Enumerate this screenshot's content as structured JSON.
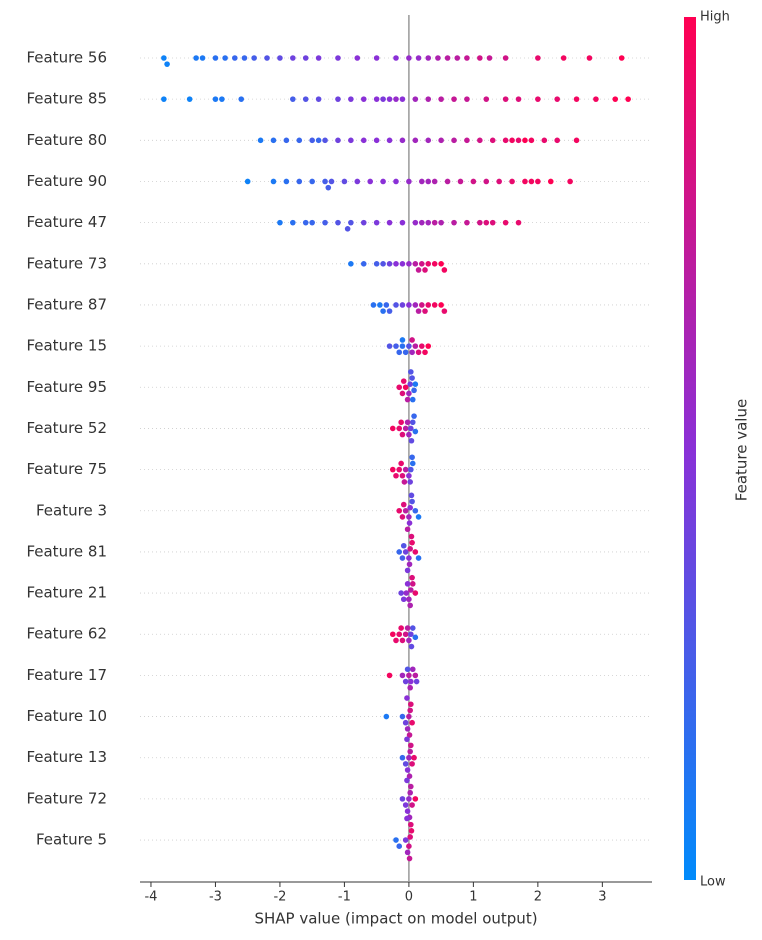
{
  "chart_data": {
    "type": "beeswarm",
    "xlabel": "SHAP value (impact on model output)",
    "xlim": [
      -4.17,
      3.77
    ],
    "xticks": [
      -4,
      -3,
      -2,
      -1,
      0,
      1,
      2,
      3
    ],
    "colorbar": {
      "label": "Feature value",
      "high": "High",
      "low": "Low",
      "colors": [
        "#008bfb",
        "#8a30d7",
        "#ff0052"
      ]
    },
    "series": [
      {
        "name": "Feature 56",
        "values": [
          -3.8,
          -3.75,
          -3.3,
          -3.2,
          -3.0,
          -2.85,
          -2.7,
          -2.55,
          -2.4,
          -2.2,
          -2.0,
          -1.8,
          -1.6,
          -1.4,
          -1.1,
          -0.8,
          -0.5,
          -0.2,
          0,
          0.15,
          0.3,
          0.45,
          0.6,
          0.75,
          0.9,
          1.1,
          1.25,
          1.5,
          2.0,
          2.4,
          2.8,
          3.3
        ],
        "feature_values": [
          0.05,
          0.05,
          0.1,
          0.1,
          0.15,
          0.15,
          0.2,
          0.2,
          0.25,
          0.3,
          0.35,
          0.4,
          0.4,
          0.45,
          0.45,
          0.5,
          0.5,
          0.5,
          0.55,
          0.55,
          0.6,
          0.65,
          0.7,
          0.7,
          0.75,
          0.8,
          0.75,
          0.8,
          0.9,
          0.95,
          0.95,
          1
        ]
      },
      {
        "name": "Feature 85",
        "values": [
          -3.8,
          -3.4,
          -3.0,
          -2.9,
          -2.6,
          -1.8,
          -1.6,
          -1.4,
          -1.1,
          -0.9,
          -0.7,
          -0.5,
          -0.4,
          -0.3,
          -0.2,
          -0.1,
          0.1,
          0.3,
          0.5,
          0.7,
          0.9,
          1.2,
          1.5,
          1.7,
          2.0,
          2.3,
          2.6,
          2.9,
          3.2,
          3.4
        ],
        "feature_values": [
          0.05,
          0.05,
          0.1,
          0.1,
          0.15,
          0.25,
          0.3,
          0.35,
          0.4,
          0.45,
          0.5,
          0.5,
          0.45,
          0.5,
          0.55,
          0.5,
          0.6,
          0.65,
          0.7,
          0.75,
          0.75,
          0.8,
          0.85,
          0.85,
          0.9,
          0.9,
          0.95,
          0.95,
          1,
          1
        ]
      },
      {
        "name": "Feature 80",
        "values": [
          -2.3,
          -2.1,
          -1.9,
          -1.7,
          -1.5,
          -1.3,
          -1.1,
          -0.9,
          -0.7,
          -0.5,
          -0.3,
          -0.1,
          0.1,
          0.3,
          0.5,
          0.7,
          0.9,
          1.1,
          1.3,
          1.5,
          1.6,
          1.7,
          1.8,
          1.9,
          2.1,
          2.3,
          2.6,
          -1.4
        ],
        "feature_values": [
          0.1,
          0.15,
          0.2,
          0.2,
          0.25,
          0.3,
          0.4,
          0.45,
          0.5,
          0.5,
          0.5,
          0.55,
          0.6,
          0.6,
          0.65,
          0.7,
          0.75,
          0.8,
          0.85,
          0.9,
          0.95,
          0.9,
          1,
          0.95,
          0.9,
          0.9,
          0.95,
          0.2
        ]
      },
      {
        "name": "Feature 90",
        "values": [
          -2.5,
          -2.1,
          -1.9,
          -1.7,
          -1.5,
          -1.3,
          -1.2,
          -1.0,
          -0.8,
          -0.6,
          -0.4,
          -0.2,
          0,
          0.2,
          0.4,
          0.6,
          0.8,
          1.0,
          1.2,
          1.4,
          1.6,
          1.8,
          2.0,
          2.2,
          2.5,
          -1.25,
          0.3,
          1.9
        ],
        "feature_values": [
          0.05,
          0.1,
          0.15,
          0.2,
          0.2,
          0.25,
          0.3,
          0.35,
          0.45,
          0.5,
          0.5,
          0.5,
          0.55,
          0.6,
          0.65,
          0.7,
          0.75,
          0.8,
          0.8,
          0.85,
          0.9,
          0.95,
          0.95,
          1,
          0.95,
          0.25,
          0.6,
          0.95
        ]
      },
      {
        "name": "Feature 47",
        "values": [
          -2.0,
          -1.8,
          -1.5,
          -1.3,
          -1.1,
          -0.9,
          -0.7,
          -0.5,
          -0.3,
          -0.1,
          0.1,
          0.3,
          0.5,
          0.7,
          0.9,
          1.1,
          1.3,
          1.5,
          1.7,
          -0.95,
          0.4,
          1.2,
          -1.6,
          0.2
        ],
        "feature_values": [
          0.1,
          0.15,
          0.2,
          0.25,
          0.3,
          0.3,
          0.4,
          0.45,
          0.5,
          0.5,
          0.55,
          0.6,
          0.65,
          0.7,
          0.75,
          0.8,
          0.85,
          0.9,
          0.9,
          0.3,
          0.7,
          0.85,
          0.2,
          0.6
        ]
      },
      {
        "name": "Feature 73",
        "values": [
          -0.9,
          -0.7,
          -0.5,
          -0.4,
          -0.3,
          -0.2,
          -0.1,
          0,
          0.1,
          0.2,
          0.25,
          0.3,
          0.4,
          0.5,
          0.55,
          0.15
        ],
        "feature_values": [
          0.1,
          0.2,
          0.25,
          0.3,
          0.4,
          0.5,
          0.5,
          0.55,
          0.7,
          0.8,
          0.85,
          0.9,
          0.95,
          1,
          0.95,
          0.75
        ]
      },
      {
        "name": "Feature 87",
        "values": [
          -0.55,
          -0.45,
          -0.35,
          -0.3,
          -0.2,
          -0.1,
          0,
          0.1,
          0.15,
          0.2,
          0.25,
          0.3,
          0.4,
          0.5,
          0.55,
          -0.4
        ],
        "feature_values": [
          0.15,
          0.1,
          0.2,
          0.25,
          0.3,
          0.4,
          0.5,
          0.6,
          0.7,
          0.8,
          0.85,
          0.9,
          0.95,
          1,
          0.9,
          0.15
        ]
      },
      {
        "name": "Feature 15",
        "values": [
          -0.3,
          -0.2,
          -0.15,
          -0.1,
          -0.05,
          0,
          0.05,
          0.1,
          0.15,
          0.2,
          0.25,
          0.3,
          -0.1,
          0.05
        ],
        "feature_values": [
          0.3,
          0.25,
          0.2,
          0.15,
          0.2,
          0.3,
          0.6,
          0.7,
          0.85,
          0.9,
          0.95,
          1,
          0.1,
          0.8
        ]
      },
      {
        "name": "Feature 95",
        "values": [
          -0.15,
          -0.1,
          -0.05,
          0,
          0.02,
          0.05,
          0.08,
          0.1,
          -0.08,
          -0.02,
          0.03,
          0.06
        ],
        "feature_values": [
          0.9,
          0.85,
          0.95,
          0.6,
          0.4,
          0.3,
          0.2,
          0.1,
          0.9,
          0.7,
          0.3,
          0.15
        ]
      },
      {
        "name": "Feature 52",
        "values": [
          -0.25,
          -0.15,
          -0.1,
          -0.05,
          0,
          0.03,
          0.06,
          0.1,
          -0.12,
          -0.02,
          0.04,
          0.08
        ],
        "feature_values": [
          0.95,
          0.9,
          0.85,
          0.7,
          0.6,
          0.4,
          0.3,
          0.15,
          0.9,
          0.65,
          0.35,
          0.2
        ]
      },
      {
        "name": "Feature 75",
        "values": [
          -0.25,
          -0.2,
          -0.15,
          -0.1,
          -0.05,
          0,
          0.03,
          0.06,
          -0.12,
          -0.07,
          0.02,
          0.05
        ],
        "feature_values": [
          0.95,
          0.9,
          0.9,
          0.85,
          0.7,
          0.5,
          0.3,
          0.15,
          0.9,
          0.75,
          0.4,
          0.2
        ]
      },
      {
        "name": "Feature 3",
        "values": [
          -0.15,
          -0.1,
          -0.05,
          0,
          0.02,
          0.05,
          0.1,
          0.15,
          -0.08,
          0.01,
          0.04,
          -0.02
        ],
        "feature_values": [
          0.9,
          0.85,
          0.7,
          0.6,
          0.5,
          0.3,
          0.2,
          0.1,
          0.85,
          0.5,
          0.35,
          0.7
        ]
      },
      {
        "name": "Feature 81",
        "values": [
          -0.15,
          -0.1,
          -0.05,
          0,
          0.02,
          0.05,
          0.1,
          0.15,
          -0.08,
          0.01,
          0.04,
          -0.02
        ],
        "feature_values": [
          0.2,
          0.25,
          0.4,
          0.5,
          0.8,
          0.9,
          0.9,
          0.15,
          0.3,
          0.6,
          0.85,
          0.45
        ]
      },
      {
        "name": "Feature 21",
        "values": [
          -0.12,
          -0.08,
          -0.04,
          0,
          0.03,
          0.06,
          0.1,
          -0.02,
          0.02,
          0.05
        ],
        "feature_values": [
          0.4,
          0.45,
          0.55,
          0.6,
          0.7,
          0.8,
          0.9,
          0.5,
          0.65,
          0.85
        ]
      },
      {
        "name": "Feature 62",
        "values": [
          -0.25,
          -0.2,
          -0.15,
          -0.1,
          -0.05,
          0,
          0.03,
          0.06,
          0.1,
          -0.12,
          -0.02,
          0.04
        ],
        "feature_values": [
          0.95,
          0.9,
          0.9,
          0.85,
          0.8,
          0.6,
          0.4,
          0.3,
          0.15,
          0.9,
          0.7,
          0.35
        ]
      },
      {
        "name": "Feature 17",
        "values": [
          -0.3,
          -0.1,
          -0.05,
          0,
          0.03,
          0.06,
          0.1,
          -0.02,
          0.02,
          0.12
        ],
        "feature_values": [
          0.95,
          0.6,
          0.4,
          0.7,
          0.5,
          0.6,
          0.7,
          0.3,
          0.65,
          0.4
        ]
      },
      {
        "name": "Feature 10",
        "values": [
          -0.35,
          -0.1,
          -0.05,
          0,
          0.02,
          0.05,
          -0.02,
          0.03,
          0.01,
          -0.03
        ],
        "feature_values": [
          0.1,
          0.2,
          0.4,
          0.7,
          0.8,
          0.9,
          0.6,
          0.85,
          0.75,
          0.5
        ]
      },
      {
        "name": "Feature 13",
        "values": [
          -0.1,
          -0.05,
          0,
          0.02,
          0.05,
          0.08,
          -0.02,
          0.03,
          0.01,
          -0.03
        ],
        "feature_values": [
          0.2,
          0.35,
          0.6,
          0.7,
          0.85,
          0.9,
          0.5,
          0.8,
          0.65,
          0.45
        ]
      },
      {
        "name": "Feature 72",
        "values": [
          -0.1,
          -0.05,
          0,
          0.02,
          0.05,
          0.1,
          -0.02,
          0.03,
          0.01,
          -0.03
        ],
        "feature_values": [
          0.4,
          0.45,
          0.55,
          0.65,
          0.8,
          0.95,
          0.5,
          0.7,
          0.6,
          0.45
        ]
      },
      {
        "name": "Feature 5",
        "values": [
          -0.2,
          -0.15,
          -0.05,
          0,
          0.02,
          0.04,
          -0.02,
          0.03,
          0.01,
          -0.03
        ],
        "feature_values": [
          0.15,
          0.2,
          0.45,
          0.8,
          0.85,
          0.9,
          0.6,
          0.85,
          0.75,
          0.5
        ]
      }
    ]
  }
}
